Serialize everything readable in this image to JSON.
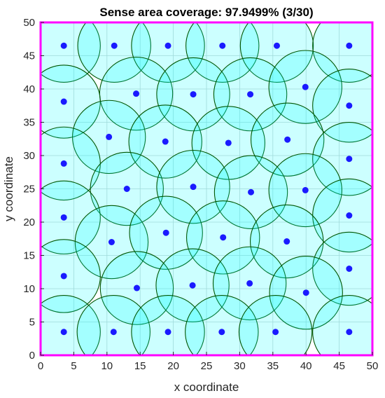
{
  "chart_data": {
    "type": "scatter",
    "title": "Sense area coverage: 97.9499% (3/30)",
    "xlabel": "x coordinate",
    "ylabel": "y coordinate",
    "xlim": [
      0,
      50
    ],
    "ylim": [
      0,
      50
    ],
    "xticks": [
      0,
      5,
      10,
      15,
      20,
      25,
      30,
      35,
      40,
      45,
      50
    ],
    "yticks": [
      0,
      5,
      10,
      15,
      20,
      25,
      30,
      35,
      40,
      45,
      50
    ],
    "grid": true,
    "sensing_radius": 5.5,
    "colors": {
      "node": "#1a1aff",
      "coverage_fill": "#00ffff",
      "circle_edge": "#005500",
      "area_border": "#ff00ff",
      "grid": "#c8d2d2"
    },
    "nodes": [
      {
        "x": 3.5,
        "y": 46.5
      },
      {
        "x": 11.1,
        "y": 46.5
      },
      {
        "x": 19.2,
        "y": 46.5
      },
      {
        "x": 27.4,
        "y": 46.5
      },
      {
        "x": 35.6,
        "y": 46.5
      },
      {
        "x": 46.5,
        "y": 46.5
      },
      {
        "x": 14.4,
        "y": 39.3
      },
      {
        "x": 23.0,
        "y": 39.2
      },
      {
        "x": 31.6,
        "y": 39.2
      },
      {
        "x": 39.9,
        "y": 40.3
      },
      {
        "x": 3.5,
        "y": 38.1
      },
      {
        "x": 46.5,
        "y": 37.5
      },
      {
        "x": 10.3,
        "y": 32.8
      },
      {
        "x": 18.8,
        "y": 32.1
      },
      {
        "x": 28.3,
        "y": 31.9
      },
      {
        "x": 37.2,
        "y": 32.4
      },
      {
        "x": 3.5,
        "y": 28.8
      },
      {
        "x": 46.5,
        "y": 29.5
      },
      {
        "x": 13.0,
        "y": 25.0
      },
      {
        "x": 23.0,
        "y": 25.3
      },
      {
        "x": 31.7,
        "y": 24.5
      },
      {
        "x": 39.9,
        "y": 24.8
      },
      {
        "x": 3.5,
        "y": 20.7
      },
      {
        "x": 46.5,
        "y": 21.0
      },
      {
        "x": 10.7,
        "y": 17.0
      },
      {
        "x": 18.9,
        "y": 18.4
      },
      {
        "x": 27.5,
        "y": 17.7
      },
      {
        "x": 37.1,
        "y": 17.1
      },
      {
        "x": 3.5,
        "y": 11.9
      },
      {
        "x": 46.5,
        "y": 13.0
      },
      {
        "x": 14.5,
        "y": 10.1
      },
      {
        "x": 22.9,
        "y": 10.5
      },
      {
        "x": 31.5,
        "y": 10.8
      },
      {
        "x": 40.0,
        "y": 9.4
      },
      {
        "x": 3.5,
        "y": 3.5
      },
      {
        "x": 11.0,
        "y": 3.5
      },
      {
        "x": 19.2,
        "y": 3.5
      },
      {
        "x": 27.3,
        "y": 3.5
      },
      {
        "x": 35.4,
        "y": 3.5
      },
      {
        "x": 46.5,
        "y": 3.5
      }
    ]
  }
}
